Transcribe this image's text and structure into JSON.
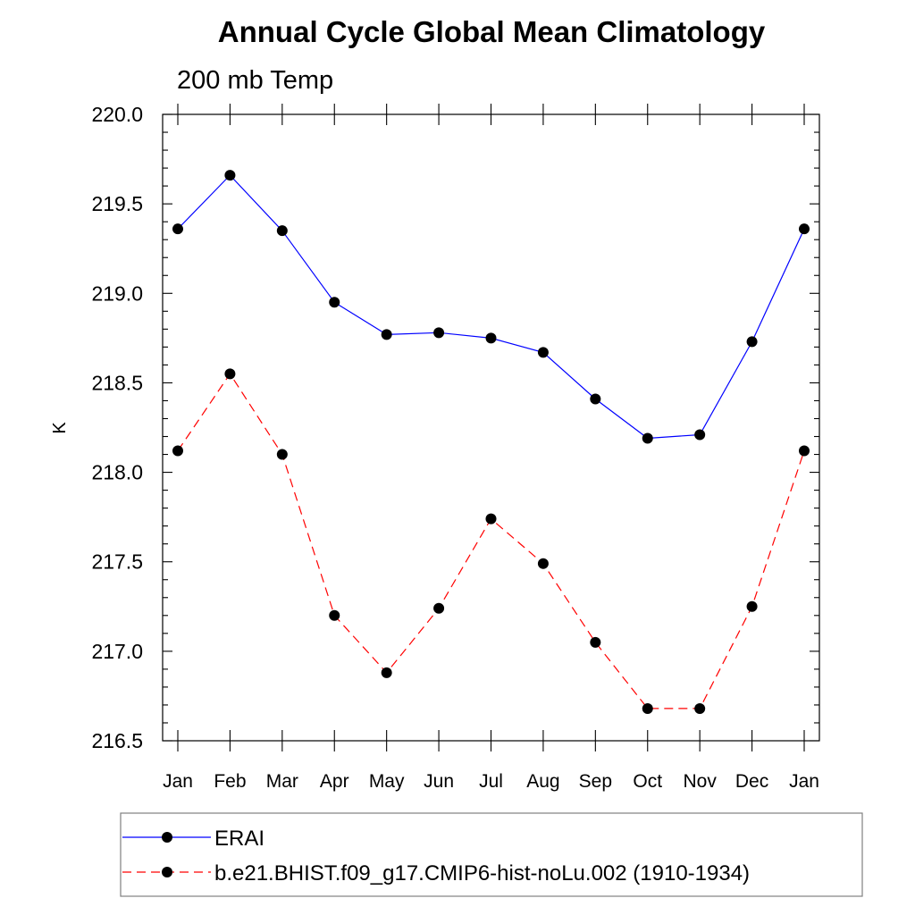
{
  "chart_data": {
    "type": "line",
    "title": "Annual Cycle Global Mean Climatology",
    "subtitle": "200 mb Temp",
    "xlabel": "",
    "ylabel": "K",
    "categories": [
      "Jan",
      "Feb",
      "Mar",
      "Apr",
      "May",
      "Jun",
      "Jul",
      "Aug",
      "Sep",
      "Oct",
      "Nov",
      "Dec",
      "Jan"
    ],
    "ylim": [
      216.5,
      220.0
    ],
    "yticks": [
      "216.5",
      "217.0",
      "217.5",
      "218.0",
      "218.5",
      "219.0",
      "219.5",
      "220.0"
    ],
    "grid": false,
    "legend_position": "bottom",
    "series": [
      {
        "name": "ERAI",
        "color": "#0000ff",
        "line_style": "solid",
        "values": [
          219.36,
          219.66,
          219.35,
          218.95,
          218.77,
          218.78,
          218.75,
          218.67,
          218.41,
          218.19,
          218.21,
          218.73,
          219.36
        ]
      },
      {
        "name": "b.e21.BHIST.f09_g17.CMIP6-hist-noLu.002 (1910-1934)",
        "color": "#ff0000",
        "line_style": "dashed",
        "values": [
          218.12,
          218.55,
          218.1,
          217.2,
          216.88,
          217.24,
          217.74,
          217.49,
          217.05,
          216.68,
          216.68,
          217.25,
          218.12
        ]
      }
    ]
  }
}
